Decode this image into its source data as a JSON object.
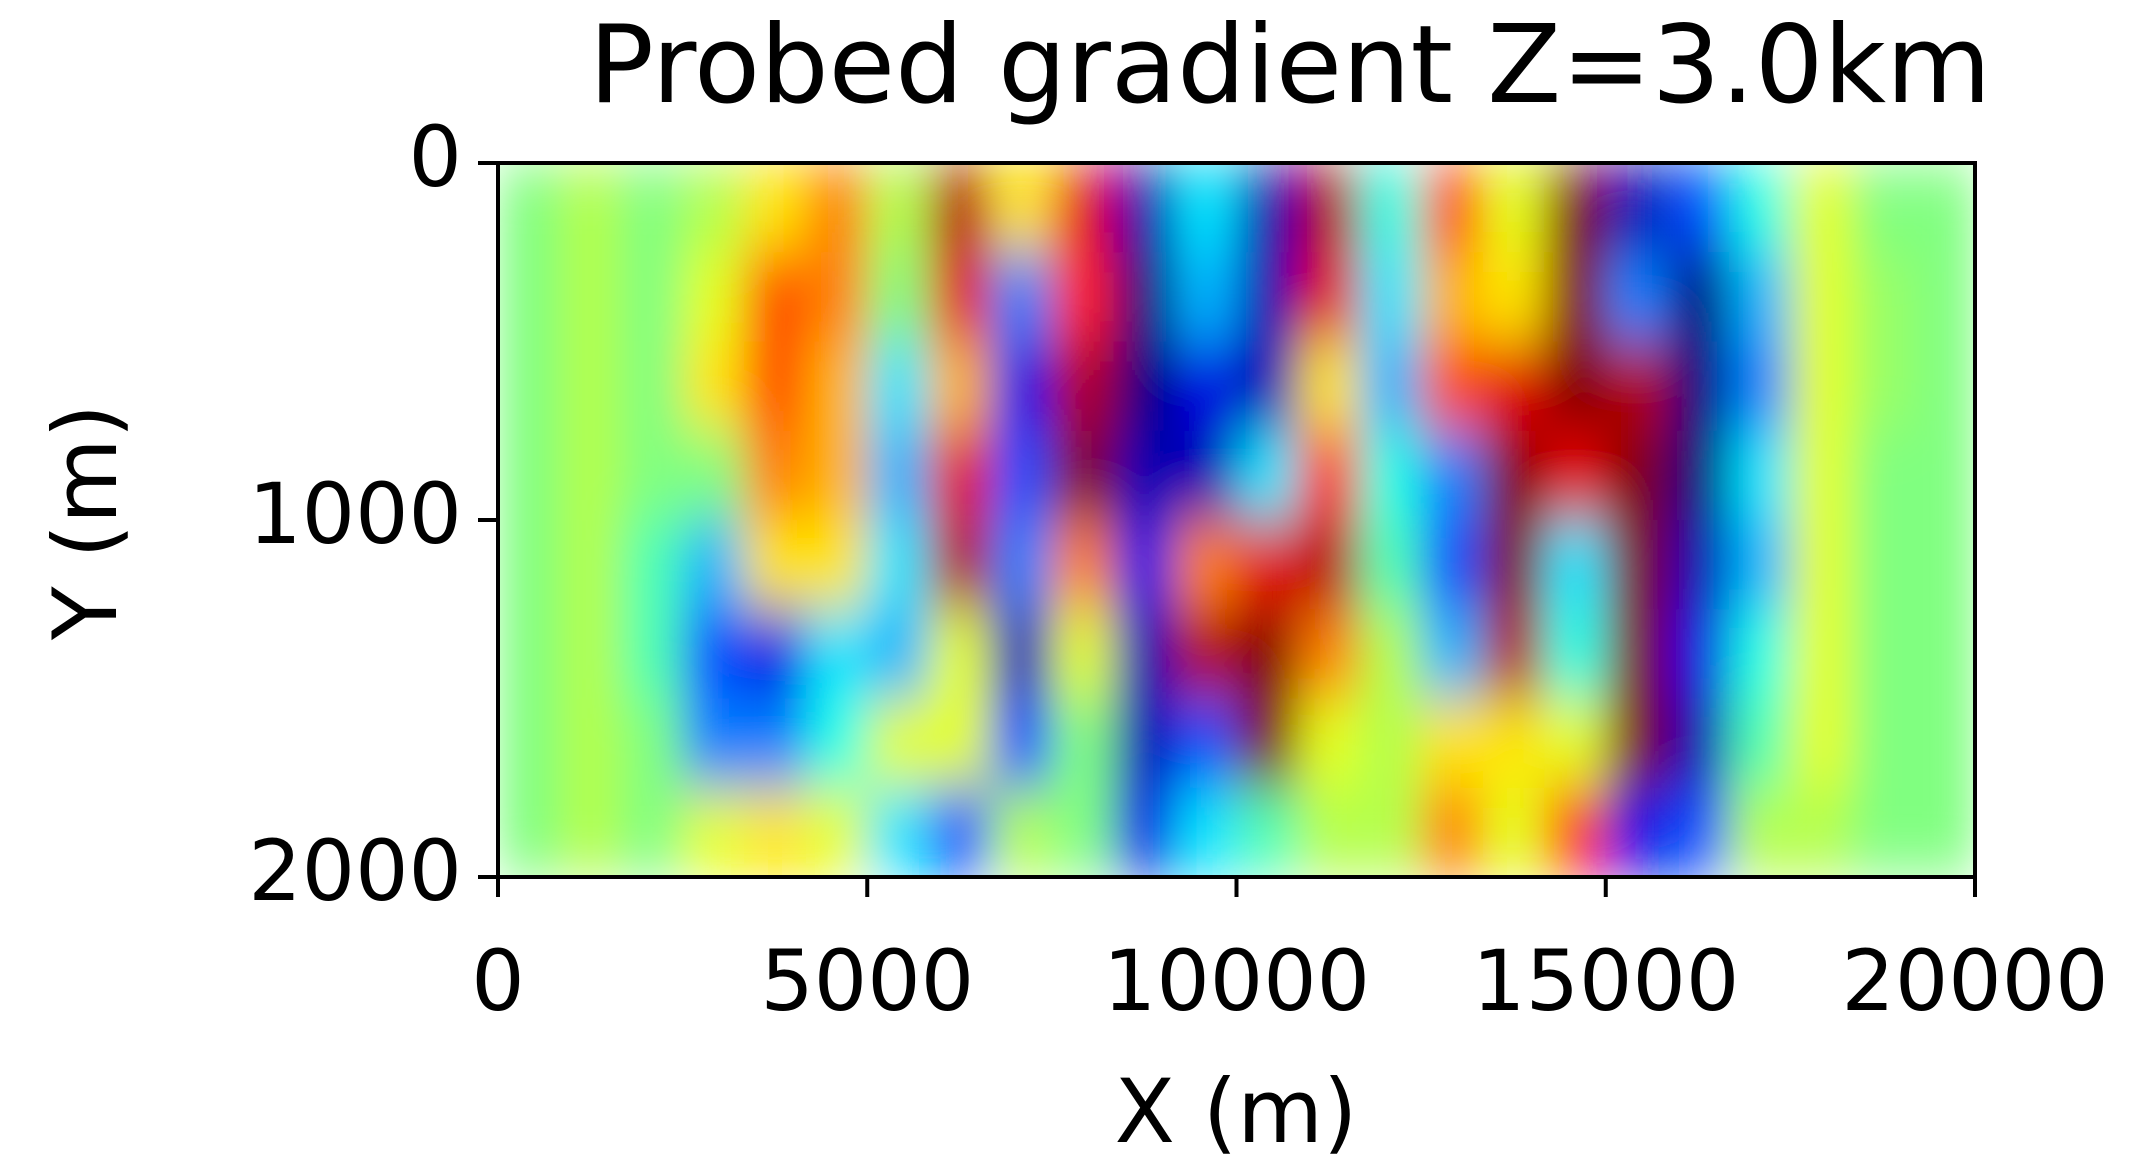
{
  "chart_data": {
    "type": "heatmap",
    "title": "Probed gradient Z=3.0km",
    "x_label": "X (m)",
    "y_label": "Y (m)",
    "xlim": [
      0,
      20000
    ],
    "xticks": [
      0,
      5000,
      10000,
      15000,
      20000
    ],
    "ylim": [
      0,
      2000
    ],
    "yticks": [
      0,
      1000,
      2000
    ],
    "y_inverted": true,
    "colormap": "jet",
    "zlim": [
      -1,
      1
    ],
    "z": [
      [
        0,
        0.1,
        0,
        0.1,
        0.3,
        0.5,
        0.1,
        0.9,
        0.3,
        0.8,
        -0.9,
        -0.3,
        -0.9,
        0.9,
        -0.2,
        0.6,
        0.2,
        1,
        -0.9,
        -0.6,
        -0.2,
        0.2,
        0,
        0
      ],
      [
        0,
        0.1,
        0,
        0.2,
        0.6,
        0.5,
        0,
        0.8,
        -0.5,
        0.7,
        -1,
        -0.4,
        -0.9,
        0.8,
        -0.3,
        0.4,
        0.3,
        1,
        -0.5,
        -1,
        -0.4,
        0.2,
        0.05,
        0
      ],
      [
        0,
        0.1,
        0,
        0.3,
        0.6,
        0.4,
        -0.3,
        0.4,
        -0.8,
        0.9,
        -1,
        -0.8,
        -0.9,
        0.3,
        -0.4,
        0.6,
        0.8,
        1,
        0.9,
        -1,
        -0.5,
        0.2,
        0.05,
        0
      ],
      [
        0,
        0.1,
        0,
        0,
        0.5,
        0.4,
        -0.4,
        0.8,
        -0.6,
        1,
        -0.9,
        -0.9,
        -0.3,
        0.7,
        -0.2,
        -0.5,
        1,
        0.8,
        1,
        -1,
        -0.3,
        0.2,
        0,
        0
      ],
      [
        0,
        0.1,
        -0.1,
        -0.4,
        0.3,
        0.3,
        -0.3,
        0.9,
        -0.5,
        0.5,
        -0.8,
        0.5,
        0.8,
        0.9,
        -0.1,
        -0.6,
        1,
        -0.3,
        1,
        -0.9,
        -0.4,
        0.2,
        0,
        0
      ],
      [
        0,
        0.1,
        -0.1,
        -0.6,
        -0.8,
        -0.3,
        -0.4,
        0.2,
        -0.9,
        0.2,
        -0.9,
        0.9,
        1,
        0.5,
        0.1,
        -0.4,
        0.9,
        -0.2,
        1,
        -0.8,
        -0.2,
        0.2,
        0,
        0
      ],
      [
        0,
        0.1,
        0,
        -0.5,
        -0.5,
        -0.2,
        0.2,
        0.2,
        -0.6,
        0,
        -0.9,
        -0.6,
        1,
        0.2,
        0.1,
        0.3,
        0.3,
        0.2,
        1,
        -0.9,
        -0.1,
        0.2,
        0,
        0
      ],
      [
        0,
        0.1,
        0,
        0.2,
        0.3,
        0.2,
        -0.3,
        -0.6,
        0.1,
        0,
        -0.8,
        -0.3,
        -0.1,
        0.1,
        0.1,
        0.5,
        0.2,
        0.7,
        -0.8,
        -0.6,
        0.1,
        0.1,
        0,
        0
      ]
    ]
  }
}
